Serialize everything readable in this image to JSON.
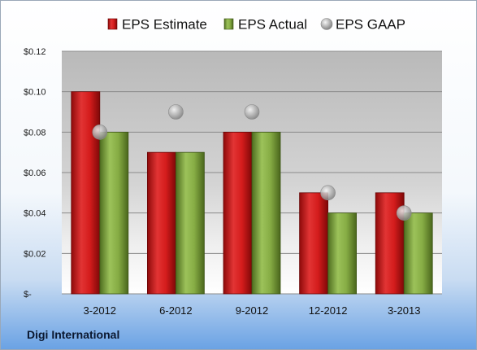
{
  "company": "Digi International",
  "chart_data": {
    "type": "bar",
    "title": "",
    "xlabel": "",
    "ylabel": "",
    "categories": [
      "3-2012",
      "6-2012",
      "9-2012",
      "12-2012",
      "3-2013"
    ],
    "series": [
      {
        "name": "EPS Estimate",
        "values": [
          0.1,
          0.07,
          0.08,
          0.05,
          0.05
        ],
        "color": "#d01818",
        "kind": "bar"
      },
      {
        "name": "EPS Actual",
        "values": [
          0.08,
          0.07,
          0.08,
          0.04,
          0.04
        ],
        "color": "#7a9f38",
        "kind": "bar"
      },
      {
        "name": "EPS GAAP",
        "values": [
          0.08,
          0.09,
          0.09,
          0.05,
          0.04
        ],
        "color": "#a8a8a8",
        "kind": "marker"
      }
    ],
    "ylim": [
      0,
      0.12
    ],
    "yticks": [
      {
        "value": 0.12,
        "label": "$0.12"
      },
      {
        "value": 0.1,
        "label": "$0.10"
      },
      {
        "value": 0.08,
        "label": "$0.08"
      },
      {
        "value": 0.06,
        "label": "$0.06"
      },
      {
        "value": 0.04,
        "label": "$0.04"
      },
      {
        "value": 0.02,
        "label": "$0.02"
      },
      {
        "value": 0,
        "label": "$-"
      }
    ],
    "grid": true,
    "legend_position": "top"
  }
}
